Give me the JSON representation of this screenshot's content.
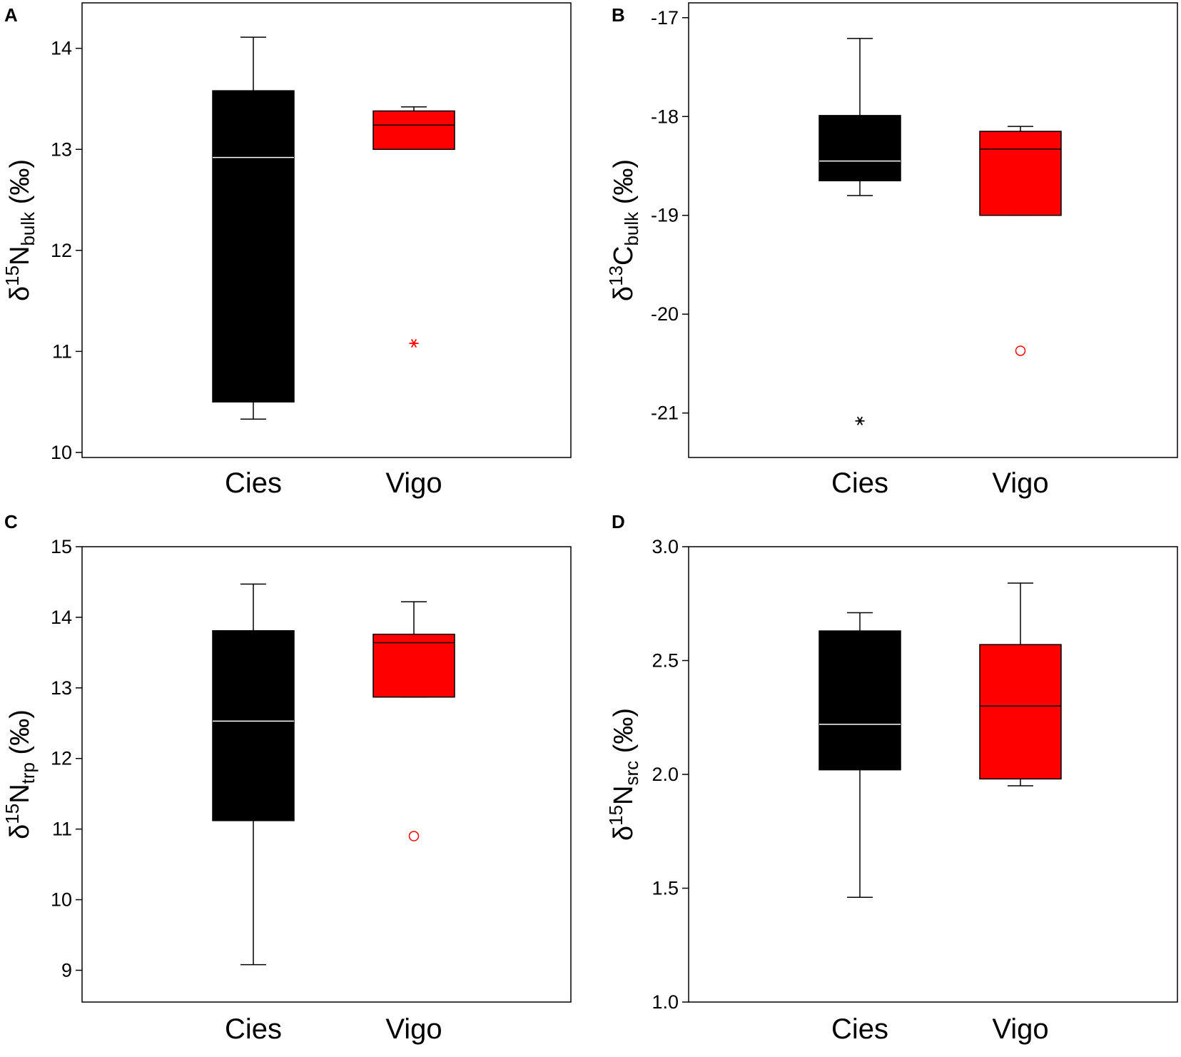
{
  "chart_data": [
    {
      "type": "box",
      "panel": "A",
      "categories": [
        "Cies",
        "Vigo"
      ],
      "ylabel": {
        "prefix": "δ",
        "iso": "15",
        "element": "N",
        "sub": "bulk",
        "unit": "(‰)"
      },
      "ylim": [
        9.95,
        14.45
      ],
      "yticks": [
        10,
        11,
        12,
        13,
        14
      ],
      "tick_labels": [
        "10",
        "11",
        "12",
        "13",
        "14"
      ],
      "boxes": [
        {
          "name": "Cies",
          "color": "#000000",
          "median_color": "#ffffff",
          "whisker_low": 10.33,
          "q1": 10.5,
          "median": 12.92,
          "q3": 13.58,
          "whisker_high": 14.11
        },
        {
          "name": "Vigo",
          "color": "#ff0000",
          "median_color": "#000000",
          "whisker_low": 13.0,
          "q1": 13.0,
          "median": 13.24,
          "q3": 13.38,
          "whisker_high": 13.42
        }
      ],
      "outliers": [
        {
          "category": "Vigo",
          "value": 11.08,
          "marker": "asterisk",
          "color": "#ff0000"
        }
      ]
    },
    {
      "type": "box",
      "panel": "B",
      "categories": [
        "Cies",
        "Vigo"
      ],
      "ylabel": {
        "prefix": "δ",
        "iso": "13",
        "element": "C",
        "sub": "bulk",
        "unit": "(‰)"
      },
      "ylim": [
        -21.45,
        -16.85
      ],
      "yticks": [
        -21,
        -20,
        -19,
        -18,
        -17
      ],
      "tick_labels": [
        "-21",
        "-20",
        "-19",
        "-18",
        "-17"
      ],
      "boxes": [
        {
          "name": "Cies",
          "color": "#000000",
          "median_color": "#ffffff",
          "whisker_low": -18.8,
          "q1": -18.65,
          "median": -18.45,
          "q3": -17.99,
          "whisker_high": -17.21
        },
        {
          "name": "Vigo",
          "color": "#ff0000",
          "median_color": "#000000",
          "whisker_low": -19.0,
          "q1": -19.0,
          "median": -18.33,
          "q3": -18.15,
          "whisker_high": -18.1
        }
      ],
      "outliers": [
        {
          "category": "Cies",
          "value": -21.08,
          "marker": "asterisk",
          "color": "#000000"
        },
        {
          "category": "Vigo",
          "value": -20.37,
          "marker": "circle",
          "color": "#ff0000"
        }
      ]
    },
    {
      "type": "box",
      "panel": "C",
      "categories": [
        "Cies",
        "Vigo"
      ],
      "ylabel": {
        "prefix": "δ",
        "iso": "15",
        "element": "N",
        "sub": "trp",
        "unit": "(‰)"
      },
      "ylim": [
        8.55,
        15.0
      ],
      "yticks": [
        9,
        10,
        11,
        12,
        13,
        14,
        15
      ],
      "tick_labels": [
        "9",
        "10",
        "11",
        "12",
        "13",
        "14",
        "15"
      ],
      "boxes": [
        {
          "name": "Cies",
          "color": "#000000",
          "median_color": "#ffffff",
          "whisker_low": 9.08,
          "q1": 11.12,
          "median": 12.53,
          "q3": 13.81,
          "whisker_high": 14.47
        },
        {
          "name": "Vigo",
          "color": "#ff0000",
          "median_color": "#000000",
          "whisker_low": 12.87,
          "q1": 12.87,
          "median": 13.64,
          "q3": 13.76,
          "whisker_high": 14.22
        }
      ],
      "outliers": [
        {
          "category": "Vigo",
          "value": 10.9,
          "marker": "circle",
          "color": "#ff0000"
        }
      ]
    },
    {
      "type": "box",
      "panel": "D",
      "categories": [
        "Cies",
        "Vigo"
      ],
      "ylabel": {
        "prefix": "δ",
        "iso": "15",
        "element": "N",
        "sub": "src",
        "unit": "(‰)"
      },
      "ylim": [
        1.0,
        3.0
      ],
      "yticks": [
        1.0,
        1.5,
        2.0,
        2.5,
        3.0
      ],
      "tick_labels": [
        "1.0",
        "1.5",
        "2.0",
        "2.5",
        "3.0"
      ],
      "boxes": [
        {
          "name": "Cies",
          "color": "#000000",
          "median_color": "#ffffff",
          "whisker_low": 1.46,
          "q1": 2.02,
          "median": 2.22,
          "q3": 2.63,
          "whisker_high": 2.71
        },
        {
          "name": "Vigo",
          "color": "#ff0000",
          "median_color": "#000000",
          "whisker_low": 1.95,
          "q1": 1.98,
          "median": 2.3,
          "q3": 2.57,
          "whisker_high": 2.84
        }
      ],
      "outliers": []
    }
  ]
}
